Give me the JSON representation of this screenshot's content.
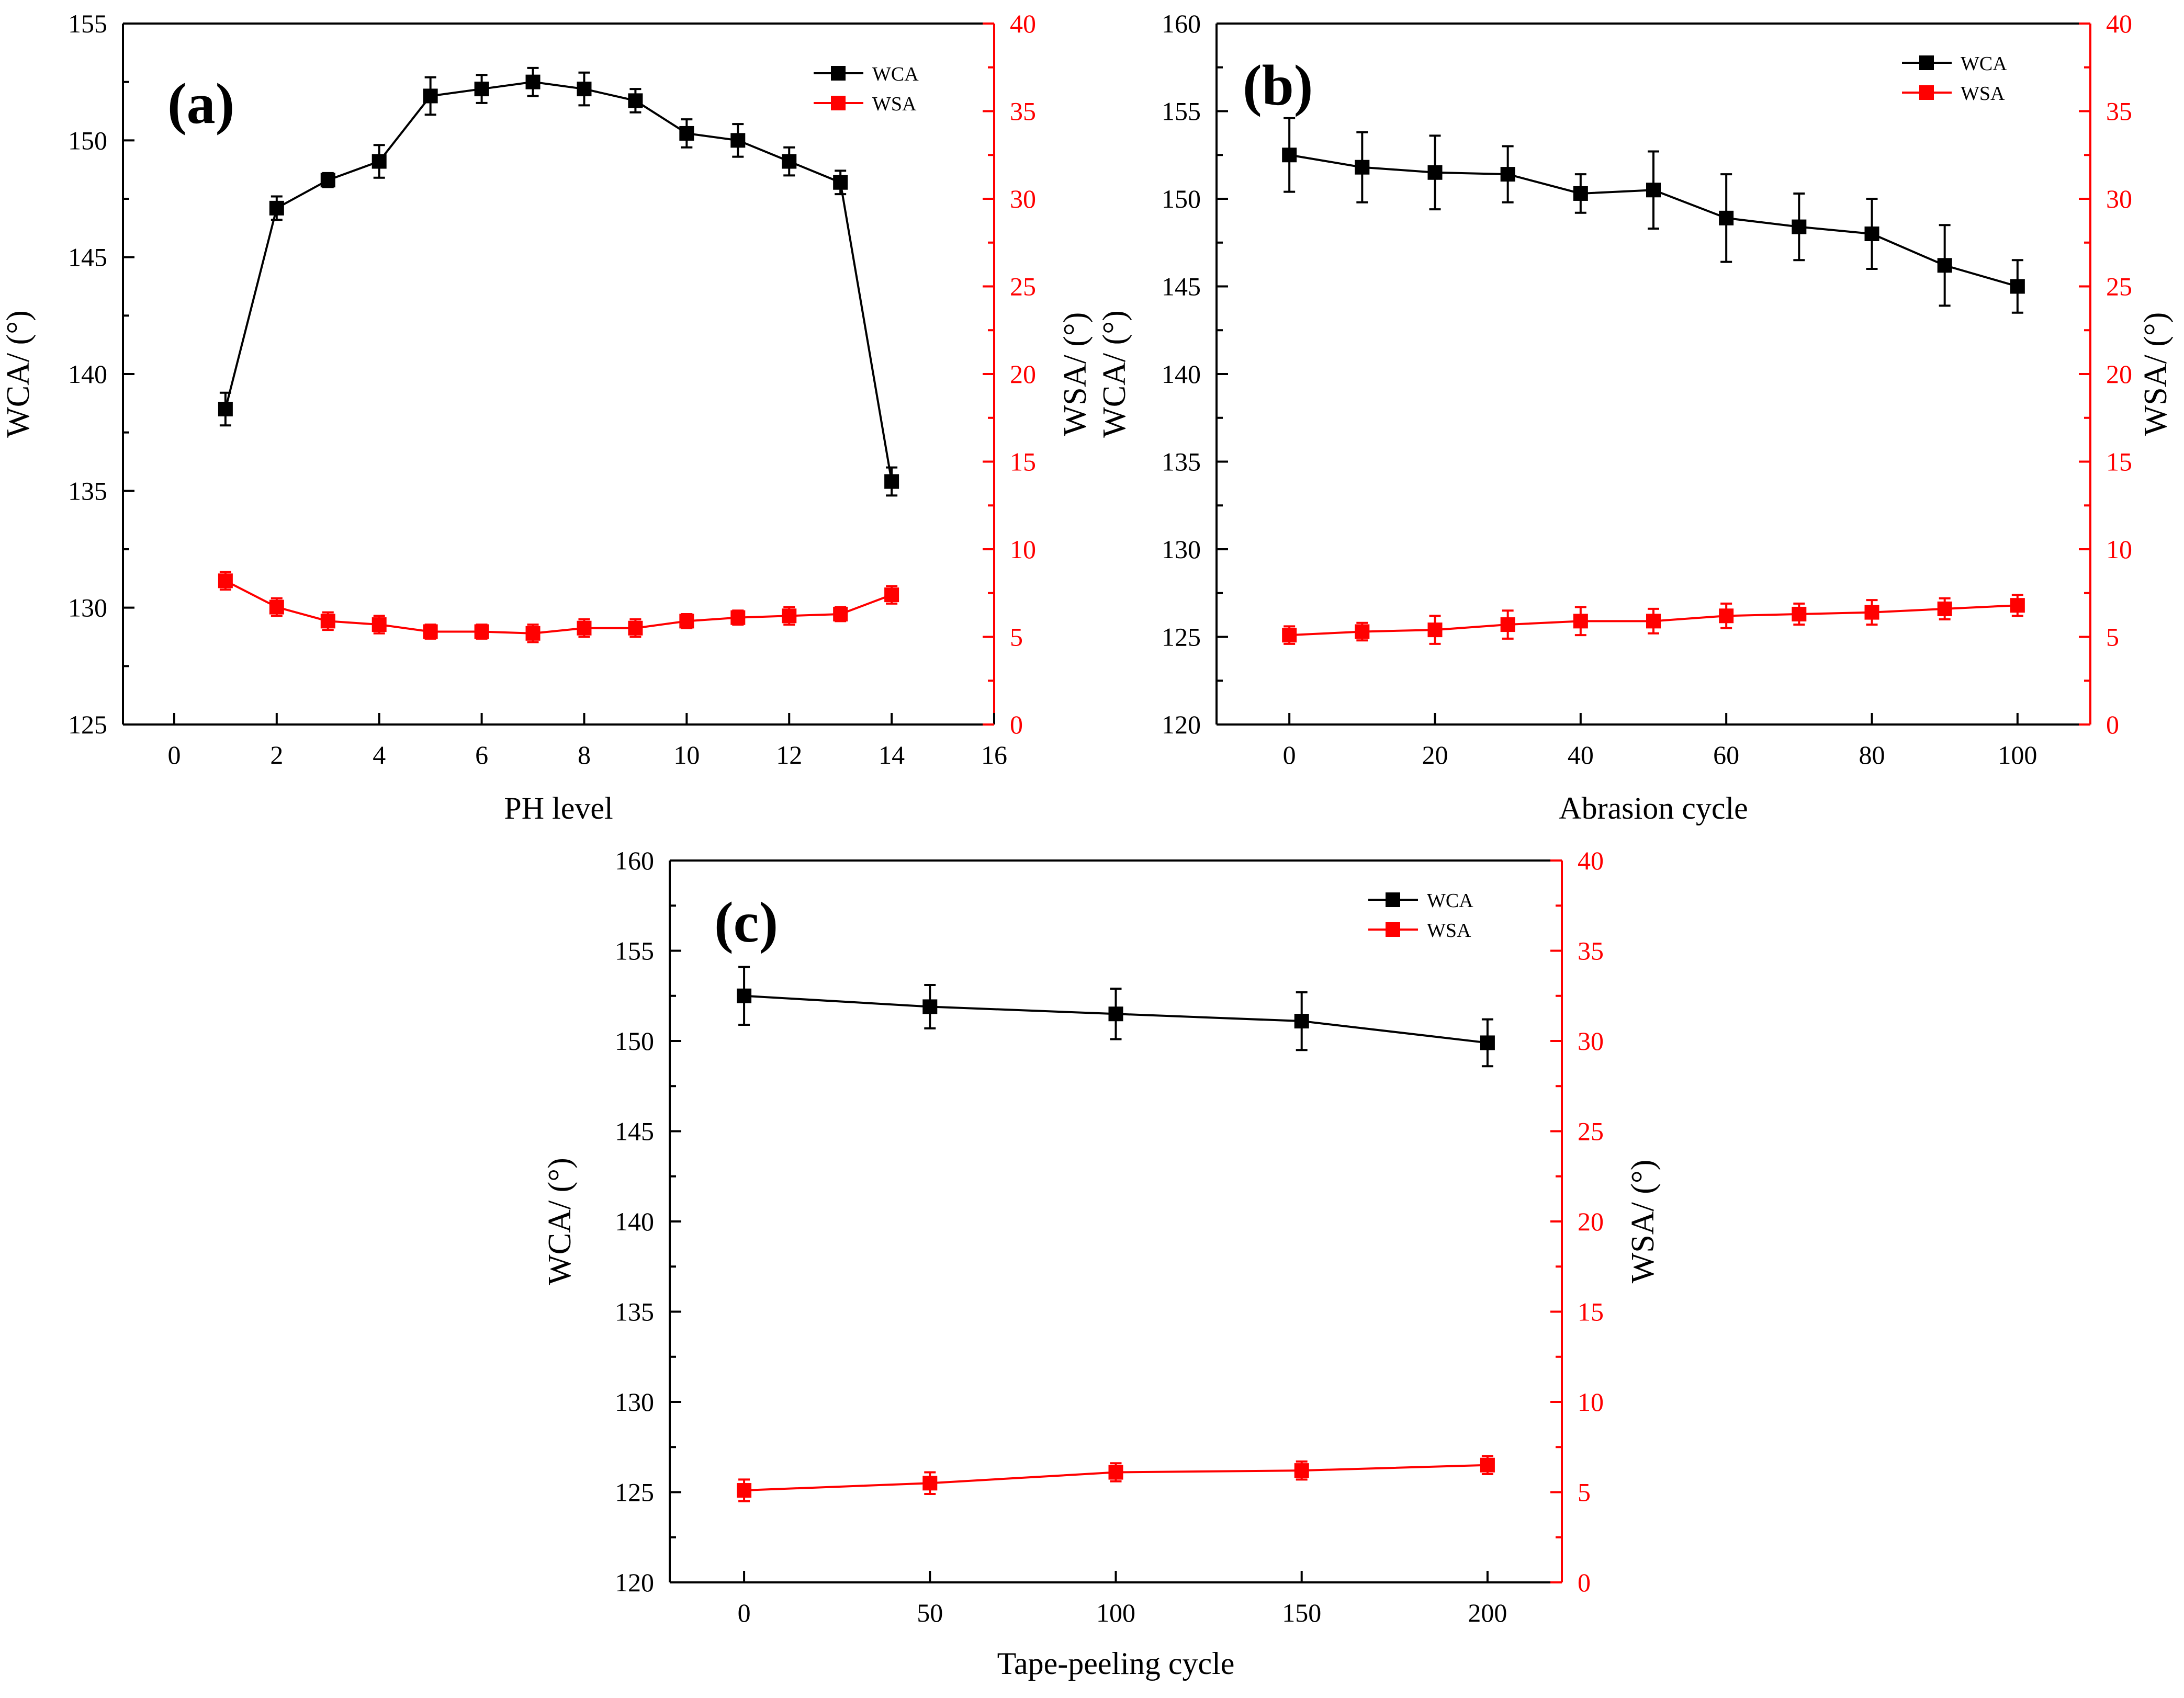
{
  "colors": {
    "wca": "#000000",
    "wsa": "#ff0000",
    "axis": "#000000"
  },
  "chart_data": [
    {
      "id": "a",
      "type": "line",
      "panel_label": "(a)",
      "xlabel": "PH level",
      "ylabel_left": "WCA/ (°)",
      "ylabel_right": "WSA/ (°)",
      "xlim": [
        -1,
        16
      ],
      "xticks": [
        0,
        2,
        4,
        6,
        8,
        10,
        12,
        14,
        16
      ],
      "ylim_left": [
        125,
        155
      ],
      "yticks_left": [
        125,
        130,
        135,
        140,
        145,
        150,
        155
      ],
      "ylim_right": [
        0,
        40
      ],
      "yticks_right": [
        0,
        5,
        10,
        15,
        20,
        25,
        30,
        35,
        40
      ],
      "legend": [
        "WCA",
        "WSA"
      ],
      "legend_position": "top-right",
      "series": [
        {
          "name": "WCA",
          "axis": "left",
          "color": "#000000",
          "x": [
            1,
            2,
            3,
            4,
            5,
            6,
            7,
            8,
            9,
            10,
            11,
            12,
            13,
            14
          ],
          "values": [
            138.5,
            147.1,
            148.3,
            149.1,
            151.9,
            152.2,
            152.5,
            152.2,
            151.7,
            150.3,
            150.0,
            149.1,
            148.2,
            135.4
          ],
          "errors": [
            0.7,
            0.5,
            0.3,
            0.7,
            0.8,
            0.6,
            0.6,
            0.7,
            0.5,
            0.6,
            0.7,
            0.6,
            0.5,
            0.6
          ]
        },
        {
          "name": "WSA",
          "axis": "right",
          "color": "#ff0000",
          "x": [
            1,
            2,
            3,
            4,
            5,
            6,
            7,
            8,
            9,
            10,
            11,
            12,
            13,
            14
          ],
          "values": [
            8.2,
            6.7,
            5.9,
            5.7,
            5.3,
            5.3,
            5.2,
            5.5,
            5.5,
            5.9,
            6.1,
            6.2,
            6.3,
            7.4
          ],
          "errors": [
            0.5,
            0.5,
            0.5,
            0.5,
            0.4,
            0.4,
            0.5,
            0.5,
            0.5,
            0.4,
            0.4,
            0.5,
            0.4,
            0.5
          ]
        }
      ]
    },
    {
      "id": "b",
      "type": "line",
      "panel_label": "(b)",
      "xlabel": "Abrasion cycle",
      "ylabel_left": "WCA/ (°)",
      "ylabel_right": "WSA/ (°)",
      "xlim": [
        -10,
        110
      ],
      "xticks": [
        0,
        20,
        40,
        60,
        80,
        100
      ],
      "ylim_left": [
        120,
        160
      ],
      "yticks_left": [
        120,
        125,
        130,
        135,
        140,
        145,
        150,
        155,
        160
      ],
      "ylim_right": [
        0,
        40
      ],
      "yticks_right": [
        0,
        5,
        10,
        15,
        20,
        25,
        30,
        35,
        40
      ],
      "legend": [
        "WCA",
        "WSA"
      ],
      "legend_position": "top-right",
      "series": [
        {
          "name": "WCA",
          "axis": "left",
          "color": "#000000",
          "x": [
            0,
            10,
            20,
            30,
            40,
            50,
            60,
            70,
            80,
            90,
            100
          ],
          "values": [
            152.5,
            151.8,
            151.5,
            151.4,
            150.3,
            150.5,
            148.9,
            148.4,
            148.0,
            146.2,
            145.0
          ],
          "errors": [
            2.1,
            2.0,
            2.1,
            1.6,
            1.1,
            2.2,
            2.5,
            1.9,
            2.0,
            2.3,
            1.5
          ]
        },
        {
          "name": "WSA",
          "axis": "right",
          "color": "#ff0000",
          "x": [
            0,
            10,
            20,
            30,
            40,
            50,
            60,
            70,
            80,
            90,
            100
          ],
          "values": [
            5.1,
            5.3,
            5.4,
            5.7,
            5.9,
            5.9,
            6.2,
            6.3,
            6.4,
            6.6,
            6.8
          ],
          "errors": [
            0.5,
            0.5,
            0.8,
            0.8,
            0.8,
            0.7,
            0.7,
            0.6,
            0.7,
            0.6,
            0.6
          ]
        }
      ]
    },
    {
      "id": "c",
      "type": "line",
      "panel_label": "(c)",
      "xlabel": "Tape-peeling cycle",
      "ylabel_left": "WCA/ (°)",
      "ylabel_right": "WSA/ (°)",
      "xlim": [
        -20,
        220
      ],
      "xticks": [
        0,
        50,
        100,
        150,
        200
      ],
      "ylim_left": [
        120,
        160
      ],
      "yticks_left": [
        120,
        125,
        130,
        135,
        140,
        145,
        150,
        155,
        160
      ],
      "ylim_right": [
        0,
        40
      ],
      "yticks_right": [
        0,
        5,
        10,
        15,
        20,
        25,
        30,
        35,
        40
      ],
      "legend": [
        "WCA",
        "WSA"
      ],
      "legend_position": "top-right",
      "series": [
        {
          "name": "WCA",
          "axis": "left",
          "color": "#000000",
          "x": [
            0,
            50,
            100,
            150,
            200
          ],
          "values": [
            152.5,
            151.9,
            151.5,
            151.1,
            149.9
          ],
          "errors": [
            1.6,
            1.2,
            1.4,
            1.6,
            1.3
          ]
        },
        {
          "name": "WSA",
          "axis": "right",
          "color": "#ff0000",
          "x": [
            0,
            50,
            100,
            150,
            200
          ],
          "values": [
            5.1,
            5.5,
            6.1,
            6.2,
            6.5
          ],
          "errors": [
            0.6,
            0.6,
            0.5,
            0.5,
            0.5
          ]
        }
      ]
    }
  ]
}
